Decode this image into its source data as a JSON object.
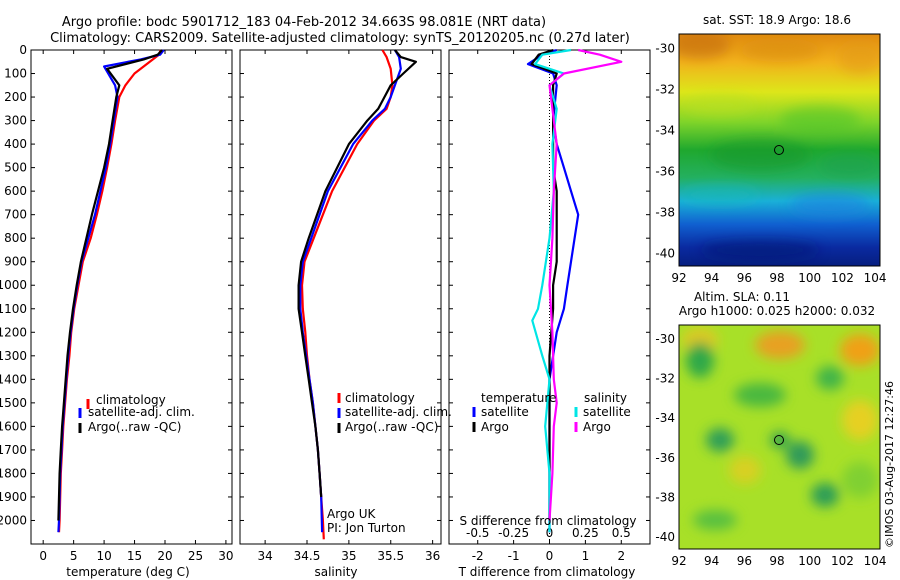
{
  "titles": {
    "line1": "Argo profile: bodc 5901712_183 04-Feb-2012 34.663S 98.081E (NRT data)",
    "line2": "Climatology: CARS2009. Satellite-adjusted climatology: synTS_20120205.nc (0.27d later)"
  },
  "credit": {
    "line1": "Argo UK",
    "line2": "PI: Jon Turton"
  },
  "watermark": "©IMOS 03-Aug-2017 12:27:46",
  "colors": {
    "red": "#ff0000",
    "blue": "#0000ff",
    "black": "#000000",
    "cyan": "#00e5e5",
    "magenta": "#ff00ff"
  },
  "chart_data": [
    {
      "type": "line",
      "id": "temperature",
      "xlabel": "temperature (deg C)",
      "ylabel": "",
      "xlim": [
        -2,
        31
      ],
      "ylim": [
        0,
        2100
      ],
      "xticks": [
        0,
        5,
        10,
        15,
        20,
        25,
        30
      ],
      "yticks": [
        0,
        100,
        200,
        300,
        400,
        500,
        600,
        700,
        800,
        900,
        1000,
        1100,
        1200,
        1300,
        1400,
        1500,
        1600,
        1700,
        1800,
        1900,
        2000
      ],
      "legend": [
        "climatology",
        "satellite-adj. clim.",
        "Argo(..raw -QC)"
      ],
      "series": [
        {
          "name": "climatology",
          "color": "#ff0000",
          "x": [
            19.3,
            19.0,
            17.5,
            15.0,
            13.5,
            12.5,
            11.8,
            11.2,
            10.5,
            9.7,
            8.8,
            7.8,
            6.5,
            5.8,
            5.1,
            4.6,
            4.3,
            3.9,
            3.6,
            3.3,
            3.1,
            2.9,
            2.8,
            2.7,
            2.6
          ],
          "y": [
            0,
            20,
            50,
            100,
            150,
            200,
            300,
            400,
            500,
            600,
            700,
            800,
            900,
            1000,
            1100,
            1200,
            1300,
            1400,
            1500,
            1600,
            1700,
            1800,
            1900,
            2000,
            2050
          ]
        },
        {
          "name": "satellite-adj. clim.",
          "color": "#0000ff",
          "x": [
            19.8,
            19.2,
            16.0,
            10.0,
            11.8,
            12.2,
            11.6,
            11.0,
            10.3,
            9.4,
            8.5,
            7.4,
            6.3,
            5.6,
            5.0,
            4.5,
            4.1,
            3.8,
            3.5,
            3.2,
            3.0,
            2.8,
            2.7,
            2.6,
            2.5
          ],
          "y": [
            0,
            20,
            40,
            70,
            150,
            200,
            300,
            400,
            500,
            600,
            700,
            800,
            900,
            1000,
            1100,
            1200,
            1300,
            1400,
            1500,
            1600,
            1700,
            1800,
            1900,
            2000,
            2050
          ]
        },
        {
          "name": "Argo(..raw -QC)",
          "color": "#000000",
          "x": [
            19.5,
            18.8,
            16.5,
            10.5,
            12.5,
            12.0,
            11.4,
            10.8,
            10.0,
            9.0,
            8.0,
            7.1,
            6.2,
            5.5,
            4.9,
            4.4,
            4.0,
            3.7,
            3.4,
            3.1,
            2.9,
            2.7,
            2.6,
            2.5
          ],
          "y": [
            0,
            20,
            40,
            80,
            150,
            200,
            300,
            400,
            500,
            600,
            700,
            800,
            900,
            1000,
            1100,
            1200,
            1300,
            1400,
            1500,
            1600,
            1700,
            1800,
            1900,
            2000
          ]
        }
      ]
    },
    {
      "type": "line",
      "id": "salinity",
      "xlabel": "salinity",
      "ylabel": "",
      "xlim": [
        33.7,
        36.1
      ],
      "ylim": [
        0,
        2100
      ],
      "xticks": [
        34,
        34.5,
        35,
        35.5,
        36
      ],
      "legend": [
        "climatology",
        "satellite-adj. clim.",
        "Argo(..raw -QC)"
      ],
      "series": [
        {
          "name": "climatology",
          "color": "#ff0000",
          "x": [
            35.4,
            35.45,
            35.5,
            35.52,
            35.5,
            35.45,
            35.3,
            35.1,
            34.8,
            34.58,
            34.47,
            34.44,
            34.45,
            34.48,
            34.5,
            34.53,
            34.57,
            34.6,
            34.63,
            34.65,
            34.67,
            34.69,
            34.7
          ],
          "y": [
            0,
            30,
            80,
            150,
            200,
            250,
            300,
            400,
            600,
            800,
            900,
            1000,
            1100,
            1200,
            1300,
            1400,
            1500,
            1600,
            1700,
            1800,
            1900,
            2000,
            2080
          ]
        },
        {
          "name": "satellite-adj. clim.",
          "color": "#0000ff",
          "x": [
            35.55,
            35.6,
            35.62,
            35.55,
            35.5,
            35.43,
            35.28,
            35.05,
            34.75,
            34.55,
            34.45,
            34.42,
            34.42,
            34.45,
            34.49,
            34.53,
            34.57,
            34.6,
            34.63,
            34.65,
            34.67,
            34.68
          ],
          "y": [
            0,
            30,
            80,
            150,
            200,
            250,
            300,
            400,
            600,
            800,
            900,
            1000,
            1100,
            1200,
            1300,
            1400,
            1500,
            1600,
            1700,
            1800,
            1900,
            2050
          ]
        },
        {
          "name": "Argo(..raw -QC)",
          "color": "#000000",
          "x": [
            35.55,
            35.62,
            35.8,
            35.65,
            35.5,
            35.35,
            35.22,
            35.0,
            34.72,
            34.52,
            34.43,
            34.4,
            34.4,
            34.44,
            34.48,
            34.52,
            34.56,
            34.6,
            34.63,
            34.65,
            34.67
          ],
          "y": [
            0,
            30,
            50,
            100,
            150,
            250,
            300,
            400,
            600,
            800,
            900,
            1000,
            1100,
            1200,
            1300,
            1400,
            1500,
            1600,
            1700,
            1800,
            1900
          ]
        }
      ]
    },
    {
      "type": "line",
      "id": "difference",
      "xlabel": "T difference from climatology",
      "xlabel_top": "S difference from climatology",
      "xlim": [
        -2.8,
        2.8
      ],
      "ylim": [
        0,
        2100
      ],
      "xticks": [
        -2,
        -1,
        0,
        1,
        2
      ],
      "xticks_S": [
        -0.5,
        -0.25,
        0,
        0.25,
        0.5
      ],
      "legend_left_title": "temperature",
      "legend_right_title": "salinity",
      "legend": [
        "satellite",
        "Argo",
        "satellite",
        "Argo"
      ],
      "series": [
        {
          "name": "satellite",
          "group": "temperature",
          "color": "#0000ff",
          "x": [
            0.2,
            -0.2,
            -0.6,
            0.1,
            0.2,
            0.1,
            0.2,
            0.4,
            0.6,
            0.8,
            0.7,
            0.6,
            0.5,
            0.4,
            0.2,
            0.1,
            0.0,
            0.0,
            0.0,
            0.0,
            0.0,
            0.0
          ],
          "y": [
            0,
            20,
            60,
            100,
            150,
            300,
            400,
            500,
            600,
            700,
            800,
            900,
            1000,
            1100,
            1200,
            1300,
            1400,
            1500,
            1700,
            1800,
            1900,
            2050
          ]
        },
        {
          "name": "Argo",
          "group": "temperature",
          "color": "#000000",
          "x": [
            0.1,
            -0.3,
            -0.5,
            0.2,
            0.1,
            0.1,
            0.1,
            0.2,
            0.2,
            0.2,
            0.2,
            0.1,
            0.1,
            0.0,
            0.0,
            0.0,
            0.0,
            0.0
          ],
          "y": [
            0,
            20,
            60,
            100,
            150,
            300,
            500,
            600,
            700,
            800,
            900,
            1000,
            1100,
            1300,
            1500,
            1700,
            1900,
            2000
          ]
        },
        {
          "name": "satellite",
          "group": "salinity",
          "color": "#00e5e5",
          "x": [
            0.15,
            -0.05,
            -0.1,
            0.1,
            0.0,
            0.05,
            0.02,
            0.03,
            0.0,
            -0.05,
            -0.08,
            -0.12,
            -0.05,
            0.0,
            -0.03,
            0.0,
            0.0
          ],
          "y": [
            0,
            20,
            60,
            100,
            150,
            250,
            400,
            600,
            800,
            1000,
            1100,
            1150,
            1300,
            1400,
            1600,
            1800,
            2050
          ]
        },
        {
          "name": "Argo",
          "group": "salinity",
          "color": "#ff00ff",
          "x": [
            0.2,
            0.35,
            0.5,
            0.1,
            0.0,
            0.02,
            0.05,
            0.03,
            0.02,
            0.0,
            0.02,
            0.03,
            0.05,
            0.03,
            0.02,
            0.0
          ],
          "y": [
            0,
            20,
            50,
            100,
            150,
            250,
            400,
            600,
            800,
            1000,
            1200,
            1400,
            1500,
            1600,
            1800,
            2000
          ]
        }
      ]
    },
    {
      "type": "heatmap",
      "id": "sst_map",
      "title": "sat. SST: 18.9 Argo: 18.6",
      "xticks": [
        92,
        94,
        96,
        98,
        100,
        102,
        104
      ],
      "yticks": [
        -30,
        -32,
        -34,
        -36,
        -38,
        -40
      ],
      "xlim": [
        92,
        104.3
      ],
      "ylim": [
        -40.6,
        -29.3
      ],
      "marker": {
        "lon": 98.081,
        "lat": -34.663
      }
    },
    {
      "type": "heatmap",
      "id": "sla_map",
      "title": "Altim. SLA: 0.11",
      "subtitle": "Argo h1000: 0.025 h2000: 0.032",
      "xticks": [
        92,
        94,
        96,
        98,
        100,
        102,
        104
      ],
      "yticks": [
        -30,
        -32,
        -34,
        -36,
        -38,
        -40
      ],
      "xlim": [
        92,
        104.3
      ],
      "ylim": [
        -40.6,
        -29.3
      ],
      "marker": {
        "lon": 98.081,
        "lat": -34.663
      }
    }
  ]
}
